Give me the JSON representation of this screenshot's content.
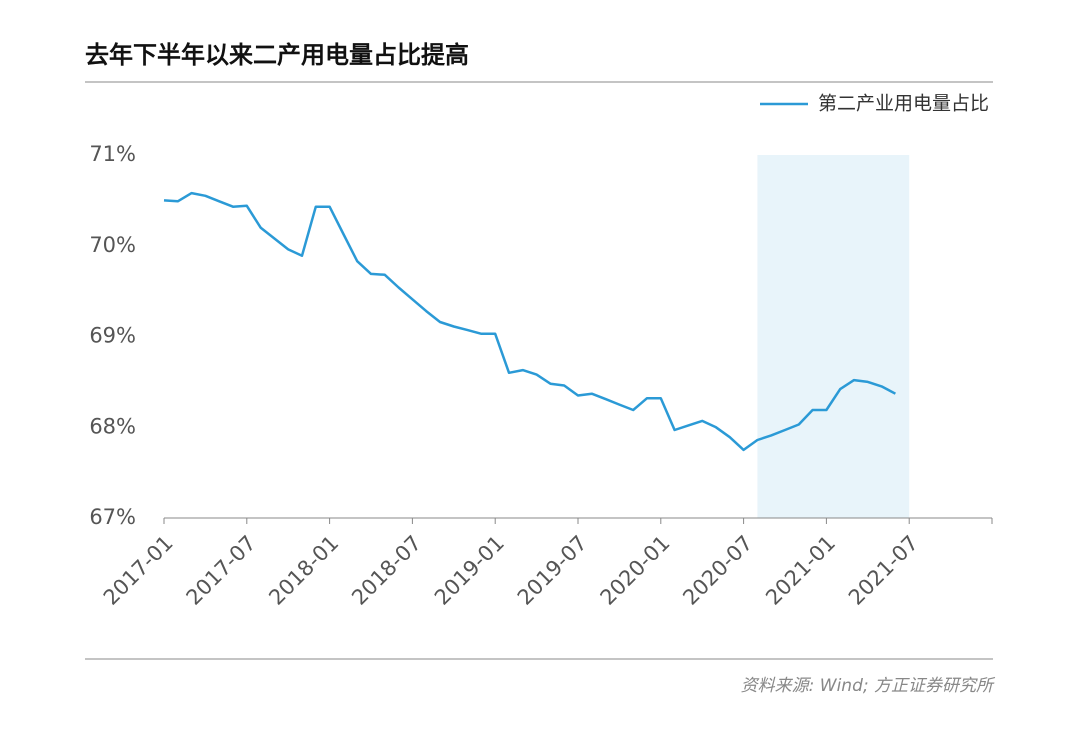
{
  "chart_data": {
    "type": "line",
    "title": "去年下半年以来二产用电量占比提高",
    "source": "资料来源: Wind; 方正证券研究所",
    "x": [
      "2017-01",
      "2017-02",
      "2017-03",
      "2017-04",
      "2017-05",
      "2017-06",
      "2017-07",
      "2017-08",
      "2017-09",
      "2017-10",
      "2017-11",
      "2017-12",
      "2018-01",
      "2018-02",
      "2018-03",
      "2018-04",
      "2018-05",
      "2018-06",
      "2018-07",
      "2018-08",
      "2018-09",
      "2018-10",
      "2018-11",
      "2018-12",
      "2019-01",
      "2019-02",
      "2019-03",
      "2019-04",
      "2019-05",
      "2019-06",
      "2019-07",
      "2019-08",
      "2019-09",
      "2019-10",
      "2019-11",
      "2019-12",
      "2020-01",
      "2020-02",
      "2020-03",
      "2020-04",
      "2020-05",
      "2020-06",
      "2020-07",
      "2020-08",
      "2020-09",
      "2020-10",
      "2020-11",
      "2020-12",
      "2021-01",
      "2021-02",
      "2021-03",
      "2021-04",
      "2021-05",
      "2021-06"
    ],
    "series": [
      {
        "name": "第二产业用电量占比",
        "color": "#2b9ad6",
        "values": [
          70.5,
          70.49,
          70.58,
          70.55,
          70.49,
          70.43,
          70.44,
          70.2,
          70.08,
          69.96,
          69.89,
          70.43,
          70.43,
          70.13,
          69.83,
          69.69,
          69.68,
          69.54,
          69.41,
          69.28,
          69.16,
          69.11,
          69.07,
          69.03,
          69.03,
          68.6,
          68.63,
          68.58,
          68.48,
          68.46,
          68.35,
          68.37,
          68.31,
          68.25,
          68.19,
          68.32,
          68.32,
          67.97,
          68.02,
          68.07,
          68.0,
          67.89,
          67.75,
          67.86,
          67.91,
          67.97,
          68.03,
          68.19,
          68.19,
          68.42,
          68.52,
          68.5,
          68.45,
          68.37
        ]
      }
    ],
    "xlim": [
      "2017-01",
      "2022-01"
    ],
    "xticks": [
      "2017-01",
      "2017-07",
      "2018-01",
      "2018-07",
      "2019-01",
      "2019-07",
      "2020-01",
      "2020-07",
      "2021-01",
      "2021-07"
    ],
    "ylim": [
      67,
      71
    ],
    "yticks": [
      {
        "value": 67,
        "label": "67%"
      },
      {
        "value": 68,
        "label": "68%"
      },
      {
        "value": 69,
        "label": "69%"
      },
      {
        "value": 70,
        "label": "70%"
      },
      {
        "value": 71,
        "label": "71%"
      }
    ],
    "highlight": {
      "start": "2020-08",
      "end": "2021-07",
      "color": "#e8f4fa"
    },
    "legend": "top-right",
    "grid": false
  }
}
